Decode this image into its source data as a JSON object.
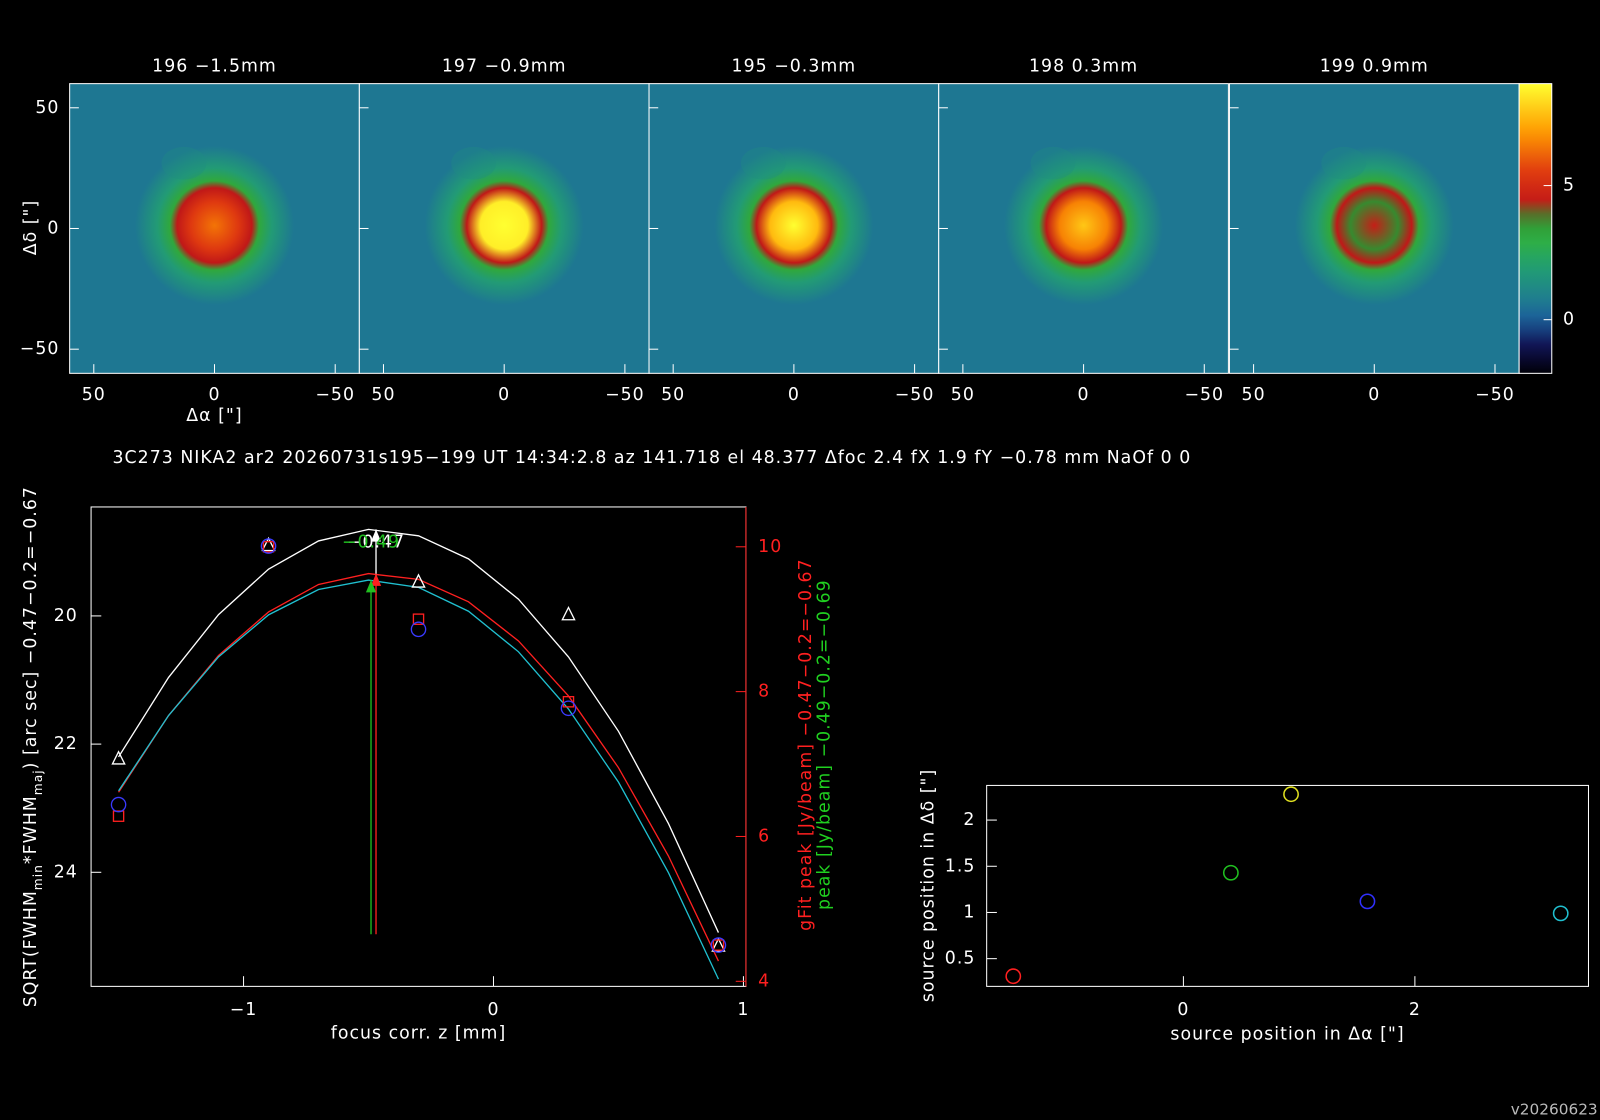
{
  "header": {
    "info": "3C273 NIKA2 ar2 20260731s195−199 UT 14:34:2.8 az 141.718 el 48.377 Δfoc 2.4 fX 1.9 fY −0.78 mm NaOf 0 0",
    "version": "v20260623"
  },
  "chart_data": [
    {
      "type": "image",
      "panels": [
        {
          "title": "196 −1.5mm",
          "peak": 6.4
        },
        {
          "title": "197 −0.9mm",
          "peak": 10.0
        },
        {
          "title": "195 −0.3mm",
          "peak": 8.9
        },
        {
          "title": "198 0.3mm",
          "peak": 7.8
        },
        {
          "title": "199 0.9mm",
          "peak": 4.5
        }
      ],
      "xlabel": "Δα [\"]",
      "ylabel": "Δδ [\"]",
      "xlim": [
        60,
        -60
      ],
      "ylim": [
        -60,
        60
      ],
      "xticks": [
        50,
        0,
        {
          "value": -50,
          "label": "−50"
        }
      ],
      "yticks": [
        {
          "value": -50,
          "label": "−50"
        },
        0,
        50
      ],
      "colorbar": {
        "lim": [
          -2,
          8.8
        ],
        "ticks": [
          0,
          5
        ]
      }
    },
    {
      "type": "focus",
      "xlabel": "focus corr. z [mm]",
      "ylabel": [
        {
          "text": "SQRT(FWHM"
        },
        {
          "text": "min",
          "sub": true
        },
        {
          "text": "*FWHM"
        },
        {
          "text": "maj",
          "sub": true
        },
        {
          "text": ") [arc sec] −0.47−0.2=−0.67"
        }
      ],
      "y2labels": [
        {
          "text": "gFit peak [Jy/beam] −0.47−0.2=−0.67",
          "color": "#ff2020"
        },
        {
          "text": "peak [Jy/beam] −0.49−0.2=−0.69",
          "color": "#20d020"
        }
      ],
      "xlim": [
        -1.61,
        1.01
      ],
      "ylim": [
        25.78,
        18.3
      ],
      "y2lim": [
        3.93,
        10.55
      ],
      "xticks": [
        {
          "value": -1,
          "label": "−1"
        },
        0,
        1
      ],
      "yticks": [
        20,
        22,
        24
      ],
      "y2ticks": [
        4,
        6,
        8,
        10
      ],
      "y2color": "#ff2020",
      "x": [
        -1.5,
        -0.9,
        -0.3,
        0.3,
        0.9
      ],
      "series": [
        {
          "marker": "triangle",
          "color": "#ffffff",
          "values": [
            22.23,
            18.9,
            19.47,
            19.98,
            25.15
          ]
        },
        {
          "marker": "square",
          "color": "#ff2020",
          "axis": "y2",
          "values": [
            6.28,
            10.0,
            9.0,
            7.86,
            4.5
          ]
        },
        {
          "marker": "circle",
          "color": "#3a3aff",
          "axis": "y2",
          "values": [
            6.44,
            10.01,
            8.86,
            7.77,
            4.5
          ]
        }
      ],
      "fits": [
        {
          "color": "#ffffff",
          "x": [
            -1.5,
            -1.3,
            -1.1,
            -0.9,
            -0.7,
            -0.5,
            -0.3,
            -0.1,
            0.1,
            0.3,
            0.5,
            0.7,
            0.9
          ],
          "values": [
            22.2,
            20.96,
            19.98,
            19.27,
            18.83,
            18.65,
            18.75,
            19.11,
            19.74,
            20.64,
            21.8,
            23.24,
            24.94
          ]
        },
        {
          "color": "#ff2020",
          "axis": "y2",
          "x": [
            -1.5,
            -1.3,
            -1.1,
            -0.9,
            -0.7,
            -0.5,
            -0.3,
            -0.1,
            0.1,
            0.3,
            0.5,
            0.7,
            0.9
          ],
          "values": [
            6.61,
            7.67,
            8.5,
            9.1,
            9.48,
            9.63,
            9.55,
            9.24,
            8.7,
            7.94,
            6.95,
            5.73,
            4.28
          ]
        },
        {
          "color": "#20c0d0",
          "axis": "y2",
          "x": [
            -1.5,
            -1.3,
            -1.1,
            -0.9,
            -0.7,
            -0.5,
            -0.3,
            -0.1,
            0.1,
            0.3,
            0.5,
            0.7,
            0.9
          ],
          "values": [
            6.63,
            7.67,
            8.48,
            9.06,
            9.41,
            9.54,
            9.44,
            9.11,
            8.55,
            7.76,
            6.75,
            5.5,
            4.03
          ]
        }
      ],
      "arrows": [
        {
          "x": -0.47,
          "from": 19.43,
          "to": 18.65,
          "color": "#ffffff",
          "label": "−0.47"
        },
        {
          "x": -0.47,
          "axis": "y2",
          "from": 4.65,
          "to": 9.63,
          "color": "#ff2020"
        },
        {
          "x": -0.49,
          "axis": "y2",
          "from": 4.65,
          "to": 9.54,
          "color": "#20c020",
          "label": "−0.49"
        }
      ]
    },
    {
      "type": "scatter",
      "xlabel": "source position in Δα [\"]",
      "ylabel": "source position in Δδ [\"]",
      "xlim": [
        -1.7,
        3.5
      ],
      "ylim": [
        0.2,
        2.375
      ],
      "xticks": [
        0,
        2
      ],
      "yticks": [
        0.5,
        1,
        1.5,
        2
      ],
      "x": [
        -1.47,
        0.41,
        0.93,
        1.59,
        3.26
      ],
      "values": [
        0.31,
        1.43,
        2.28,
        1.12,
        0.99
      ],
      "colors": [
        "#ff2020",
        "#20c020",
        "#e0e020",
        "#3030ff",
        "#20c0d0"
      ]
    }
  ]
}
